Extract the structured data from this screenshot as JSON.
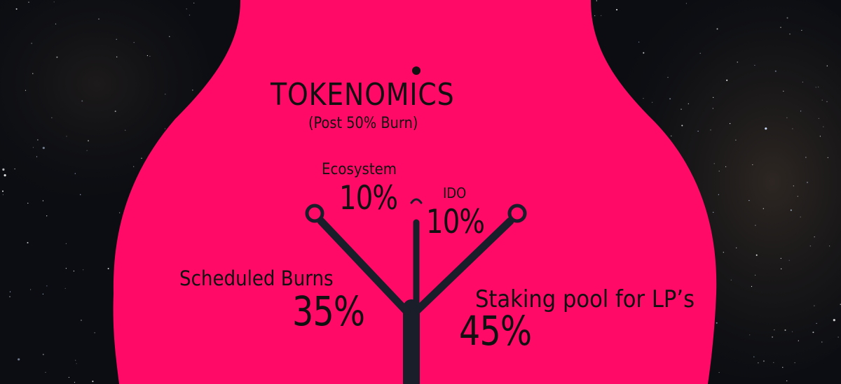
{
  "colors": {
    "background": "#0b0d12",
    "shape": "#ff0a66",
    "text": "#111111"
  },
  "heading": {
    "title": "TOKENOMICS",
    "subtitle": "(Post 50% Burn)"
  },
  "allocations": [
    {
      "label": "Ecosystem",
      "value": "10%"
    },
    {
      "label": "IDO",
      "value": "10%"
    },
    {
      "label": "Scheduled Burns",
      "value": "35%"
    },
    {
      "label": "Staking pool for LP’s",
      "value": "45%"
    }
  ]
}
